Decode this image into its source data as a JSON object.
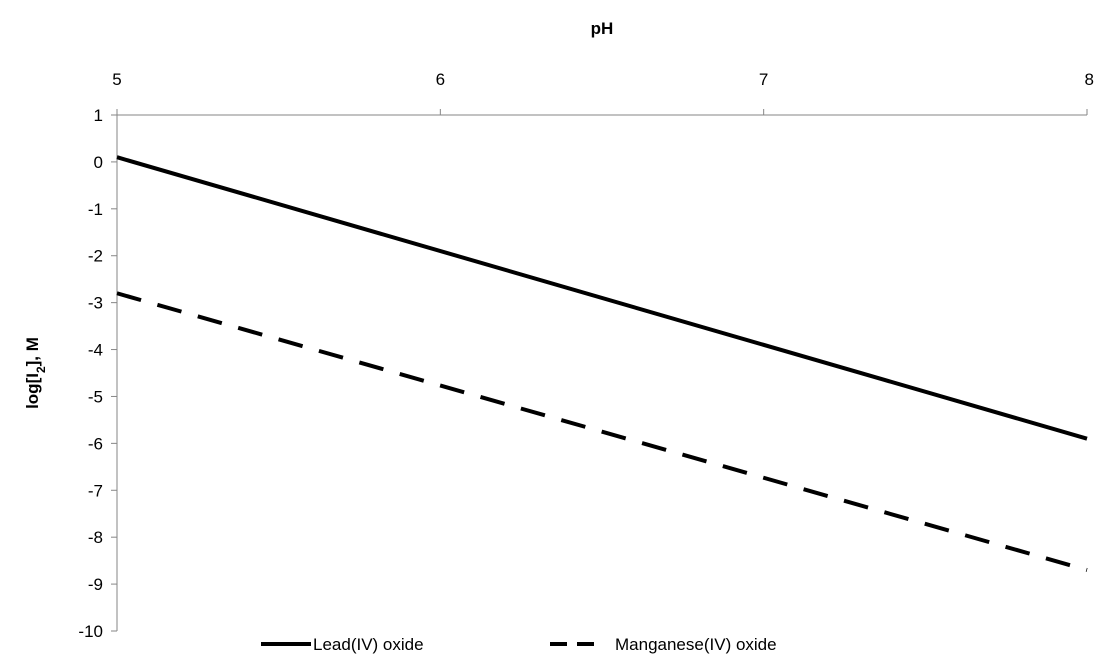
{
  "chart_data": {
    "type": "line",
    "title": "",
    "xlabel": "pH",
    "ylabel_prefix": "log[I",
    "ylabel_subscript": "2",
    "ylabel_suffix": "], M",
    "x_axis_position": "top",
    "xlim": [
      5,
      8
    ],
    "ylim": [
      -10,
      1
    ],
    "x_ticks": [
      5,
      6,
      7,
      8
    ],
    "y_ticks": [
      1,
      0,
      -1,
      -2,
      -3,
      -4,
      -5,
      -6,
      -7,
      -8,
      -9,
      -10
    ],
    "grid": false,
    "legend_position": "bottom",
    "series": [
      {
        "name": "Lead(IV) oxide",
        "style": "solid",
        "color": "#000000",
        "x": [
          5,
          8
        ],
        "y": [
          0.1,
          -5.9
        ]
      },
      {
        "name": "Manganese(IV) oxide",
        "style": "dashed",
        "color": "#000000",
        "x": [
          5,
          8
        ],
        "y": [
          -2.8,
          -8.7
        ]
      }
    ]
  }
}
